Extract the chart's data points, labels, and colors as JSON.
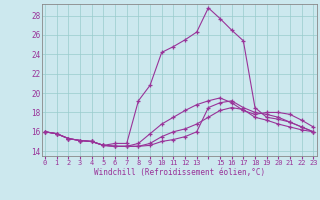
{
  "xlabel": "Windchill (Refroidissement éolien,°C)",
  "bg_color": "#cce8ee",
  "line_color": "#993399",
  "grid_color": "#99cccc",
  "xmin": 0,
  "xmax": 23,
  "ymin": 13.5,
  "ymax": 29.2,
  "yticks": [
    14,
    16,
    18,
    20,
    22,
    24,
    26,
    28
  ],
  "line1_x": [
    0,
    1,
    2,
    3,
    4,
    5,
    6,
    7,
    8,
    9,
    10,
    11,
    12,
    13,
    14,
    15,
    16,
    17,
    18,
    19,
    20,
    21,
    22,
    23
  ],
  "line1_y": [
    16.0,
    15.8,
    15.3,
    15.1,
    15.0,
    14.6,
    14.5,
    14.5,
    14.5,
    14.6,
    15.0,
    15.2,
    15.5,
    16.0,
    18.5,
    19.0,
    19.2,
    18.5,
    18.0,
    17.8,
    17.5,
    17.0,
    16.5,
    16.0
  ],
  "line2_x": [
    0,
    1,
    2,
    3,
    4,
    5,
    6,
    7,
    8,
    9,
    10,
    11,
    12,
    13,
    14,
    15,
    16,
    17,
    18,
    19,
    20,
    21,
    22,
    23
  ],
  "line2_y": [
    16.0,
    15.8,
    15.3,
    15.1,
    15.0,
    14.6,
    14.8,
    14.8,
    19.2,
    20.8,
    24.2,
    24.8,
    25.5,
    26.3,
    28.8,
    27.7,
    26.5,
    25.4,
    18.5,
    17.5,
    17.3,
    17.0,
    16.5,
    16.0
  ],
  "line3_x": [
    0,
    1,
    2,
    3,
    4,
    5,
    6,
    7,
    8,
    9,
    10,
    11,
    12,
    13,
    14,
    15,
    16,
    17,
    18,
    19,
    20,
    21,
    22,
    23
  ],
  "line3_y": [
    16.0,
    15.8,
    15.3,
    15.1,
    15.0,
    14.6,
    14.5,
    14.5,
    14.8,
    15.8,
    16.8,
    17.5,
    18.2,
    18.8,
    19.2,
    19.5,
    19.0,
    18.2,
    17.8,
    18.0,
    18.0,
    17.8,
    17.2,
    16.5
  ],
  "line4_x": [
    0,
    1,
    2,
    3,
    4,
    5,
    6,
    7,
    8,
    9,
    10,
    11,
    12,
    13,
    14,
    15,
    16,
    17,
    18,
    19,
    20,
    21,
    22,
    23
  ],
  "line4_y": [
    16.0,
    15.8,
    15.3,
    15.1,
    15.0,
    14.6,
    14.5,
    14.5,
    14.5,
    14.8,
    15.5,
    16.0,
    16.3,
    16.8,
    17.5,
    18.2,
    18.5,
    18.3,
    17.5,
    17.2,
    16.8,
    16.5,
    16.2,
    16.0
  ]
}
